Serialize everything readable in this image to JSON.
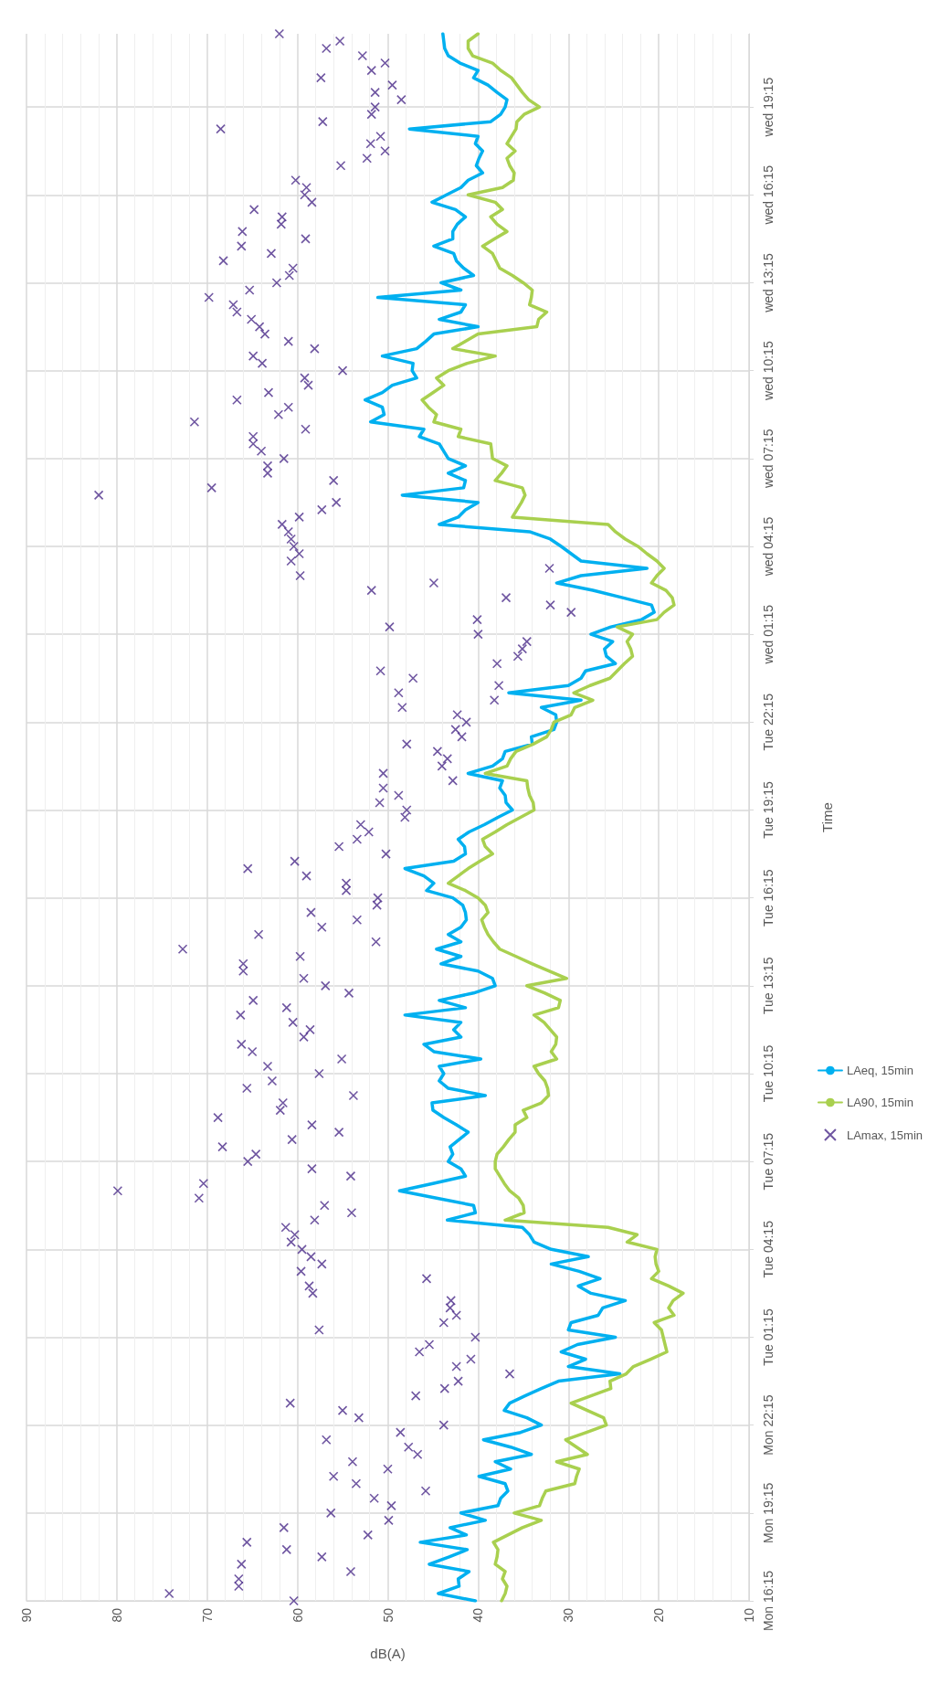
{
  "chart_data": {
    "type": "line",
    "orientation": "horizontal",
    "xlabel": "dB(A)",
    "ylabel": "Time",
    "grid": true,
    "legend": "right",
    "xlim": [
      90,
      10
    ],
    "xticks": [
      90,
      80,
      70,
      60,
      50,
      40,
      30,
      20,
      10
    ],
    "categories": [
      null,
      null,
      null,
      null,
      null,
      null,
      null,
      null,
      null,
      null,
      "wed 19:15",
      null,
      null,
      null,
      null,
      null,
      null,
      null,
      null,
      null,
      null,
      null,
      "wed 16:15",
      null,
      null,
      null,
      null,
      null,
      null,
      null,
      null,
      null,
      null,
      null,
      "wed 13:15",
      null,
      null,
      null,
      null,
      null,
      null,
      null,
      null,
      null,
      null,
      null,
      "wed 10:15",
      null,
      null,
      null,
      null,
      null,
      null,
      null,
      null,
      null,
      null,
      null,
      "wed 07:15",
      null,
      null,
      null,
      null,
      null,
      null,
      null,
      null,
      null,
      null,
      null,
      "wed 04:15",
      null,
      null,
      null,
      null,
      null,
      null,
      null,
      null,
      null,
      null,
      null,
      "wed 01:15",
      null,
      null,
      null,
      null,
      null,
      null,
      null,
      null,
      null,
      null,
      null,
      "Tue 22:15",
      null,
      null,
      null,
      null,
      null,
      null,
      null,
      null,
      null,
      null,
      null,
      "Tue 19:15",
      null,
      null,
      null,
      null,
      null,
      null,
      null,
      null,
      null,
      null,
      null,
      "Tue 16:15",
      null,
      null,
      null,
      null,
      null,
      null,
      null,
      null,
      null,
      null,
      null,
      "Tue 13:15",
      null,
      null,
      null,
      null,
      null,
      null,
      null,
      null,
      null,
      null,
      null,
      "Tue 10:15",
      null,
      null,
      null,
      null,
      null,
      null,
      null,
      null,
      null,
      null,
      null,
      "Tue 07:15",
      null,
      null,
      null,
      null,
      null,
      null,
      null,
      null,
      null,
      null,
      null,
      "Tue 04:15",
      null,
      null,
      null,
      null,
      null,
      null,
      null,
      null,
      null,
      null,
      null,
      "Tue 01:15",
      null,
      null,
      null,
      null,
      null,
      null,
      null,
      null,
      null,
      null,
      null,
      "Mon 22:15",
      null,
      null,
      null,
      null,
      null,
      null,
      null,
      null,
      null,
      null,
      null,
      "Mon 19:15",
      null,
      null,
      null,
      null,
      null,
      null,
      null,
      null,
      null,
      null,
      null,
      "Mon 16:15"
    ],
    "series": [
      {
        "name": "LAeq, 15min",
        "marker": "none",
        "color": "#00b0f0",
        "values": [
          43.9,
          43.8,
          43.7,
          43.3,
          42.0,
          40.0,
          40.5,
          38.9,
          37.9,
          36.8,
          37.0,
          37.5,
          38.6,
          47.6,
          40.0,
          40.3,
          39.5,
          39.9,
          40.2,
          39.5,
          41.1,
          41.9,
          43.5,
          45.1,
          42.5,
          41.4,
          42.3,
          42.8,
          42.8,
          44.9,
          42.7,
          42.4,
          41.6,
          40.5,
          44.1,
          41.9,
          51.1,
          41.4,
          41.9,
          44.3,
          40.0,
          44.9,
          45.8,
          46.8,
          50.6,
          47.2,
          47.3,
          46.8,
          49.5,
          50.6,
          52.5,
          50.6,
          50.4,
          51.9,
          46.0,
          46.5,
          44.3,
          43.8,
          43.3,
          41.4,
          43.3,
          41.4,
          41.6,
          48.4,
          40.0,
          41.4,
          42.2,
          44.3,
          34.3,
          32.0,
          30.8,
          29.7,
          28.6,
          21.3,
          28.6,
          31.3,
          27.3,
          24.0,
          20.8,
          20.5,
          21.9,
          25.3,
          27.5,
          25.1,
          26.0,
          25.8,
          24.8,
          28.1,
          28.6,
          30.0,
          36.6,
          28.6,
          33.0,
          31.4,
          31.3,
          31.6,
          34.1,
          34.0,
          37.0,
          37.3,
          38.4,
          41.1,
          37.3,
          37.6,
          37.0,
          36.9,
          36.2,
          37.8,
          39.3,
          41.0,
          42.2,
          41.5,
          41.4,
          42.7,
          48.1,
          46.0,
          44.9,
          45.7,
          42.8,
          41.7,
          41.4,
          41.3,
          41.9,
          43.3,
          41.9,
          44.6,
          41.9,
          44.1,
          40.0,
          38.4,
          38.1,
          40.5,
          44.3,
          41.4,
          48.1,
          41.9,
          42.7,
          41.9,
          46.0,
          44.9,
          39.7,
          44.3,
          43.8,
          44.3,
          43.3,
          39.2,
          45.1,
          45.0,
          43.8,
          42.4,
          41.1,
          42.1,
          43.1,
          42.8,
          43.3,
          41.9,
          41.4,
          45.0,
          48.7,
          44.6,
          40.5,
          40.3,
          43.4,
          35.1,
          34.3,
          33.8,
          31.9,
          27.8,
          31.9,
          28.8,
          26.5,
          28.9,
          27.5,
          23.7,
          26.2,
          26.7,
          29.7,
          30.0,
          24.8,
          29.0,
          30.8,
          28.1,
          30.0,
          24.3,
          31.1,
          33.0,
          34.8,
          36.5,
          37.1,
          34.6,
          33.0,
          35.3,
          39.4,
          36.4,
          34.1,
          38.1,
          36.4,
          39.9,
          37.0,
          36.7,
          37.5,
          37.8,
          41.9,
          39.2,
          43.1,
          41.3,
          46.4,
          41.2,
          43.2,
          45.4,
          41.0,
          42.2,
          42.1,
          44.4,
          40.3
        ]
      },
      {
        "name": "LA90, 15min",
        "marker": "none",
        "color": "#a9d04f",
        "values": [
          40.0,
          41.1,
          41.1,
          40.6,
          38.4,
          37.5,
          36.3,
          35.7,
          35.1,
          34.4,
          33.2,
          34.9,
          35.7,
          35.8,
          36.3,
          36.8,
          35.9,
          36.8,
          36.5,
          36.0,
          36.1,
          37.3,
          41.1,
          38.1,
          37.3,
          38.6,
          37.9,
          36.8,
          38.2,
          39.5,
          38.4,
          38.0,
          37.6,
          36.2,
          35.0,
          34.0,
          34.1,
          34.3,
          32.4,
          33.3,
          33.5,
          40.0,
          41.4,
          42.8,
          38.1,
          41.2,
          43.3,
          44.6,
          43.8,
          45.0,
          46.2,
          45.5,
          44.6,
          44.9,
          41.9,
          42.2,
          38.6,
          38.5,
          38.4,
          36.8,
          37.4,
          38.1,
          35.1,
          34.8,
          35.2,
          35.7,
          36.2,
          25.6,
          24.8,
          23.7,
          22.3,
          21.3,
          20.2,
          19.4,
          20.2,
          20.8,
          19.2,
          18.5,
          18.3,
          19.4,
          20.2,
          24.6,
          22.9,
          23.5,
          23.1,
          22.9,
          23.8,
          24.6,
          25.4,
          27.6,
          29.4,
          27.3,
          29.3,
          29.7,
          31.6,
          31.9,
          32.4,
          33.9,
          35.8,
          36.4,
          36.8,
          39.2,
          34.6,
          34.5,
          34.3,
          33.9,
          33.8,
          35.3,
          36.8,
          38.1,
          39.5,
          39.2,
          38.4,
          39.8,
          41.1,
          42.2,
          43.3,
          41.4,
          40.0,
          39.2,
          38.9,
          39.6,
          39.3,
          38.9,
          38.3,
          37.6,
          35.8,
          34.0,
          32.1,
          30.2,
          34.6,
          32.6,
          30.9,
          31.1,
          33.8,
          32.7,
          32.0,
          31.3,
          31.4,
          31.9,
          31.3,
          33.8,
          33.3,
          32.6,
          32.3,
          32.2,
          33.0,
          35.0,
          34.6,
          35.9,
          35.9,
          36.6,
          37.2,
          37.9,
          38.1,
          38.1,
          37.6,
          37.1,
          36.5,
          35.5,
          35.0,
          34.9,
          37.0,
          25.6,
          22.4,
          23.5,
          20.2,
          20.4,
          20.3,
          20.0,
          20.8,
          18.9,
          17.3,
          18.4,
          18.9,
          18.3,
          20.5,
          19.7,
          19.5,
          19.3,
          19.1,
          20.9,
          22.8,
          23.6,
          25.4,
          25.3,
          27.5,
          29.7,
          27.9,
          26.1,
          25.8,
          28.0,
          30.3,
          29.1,
          27.9,
          31.3,
          28.8,
          29.1,
          29.3,
          32.5,
          32.9,
          33.2,
          36.0,
          33.0,
          35.1,
          36.7,
          38.3,
          37.8,
          37.9,
          38.1,
          37.0,
          37.3,
          36.8,
          37.0,
          37.4
        ]
      },
      {
        "name": "LAmax, 15min",
        "type": "scatter",
        "marker": "cross",
        "color": "#4b2c8a",
        "values": [
          62.0,
          55.3,
          56.8,
          52.8,
          50.3,
          51.8,
          57.4,
          49.5,
          51.4,
          48.5,
          51.4,
          51.8,
          57.2,
          68.5,
          50.8,
          51.9,
          50.3,
          52.3,
          55.2,
          null,
          60.2,
          59.0,
          59.2,
          58.4,
          64.8,
          61.7,
          61.8,
          66.1,
          59.1,
          66.2,
          62.9,
          68.2,
          60.5,
          60.9,
          62.3,
          65.3,
          69.8,
          67.1,
          66.7,
          65.1,
          64.2,
          63.6,
          61.0,
          58.1,
          64.9,
          63.9,
          55.0,
          59.2,
          58.8,
          63.2,
          66.7,
          61.0,
          62.1,
          71.4,
          59.1,
          64.9,
          64.9,
          64.0,
          61.5,
          63.3,
          63.3,
          56.0,
          69.5,
          82.0,
          55.7,
          57.3,
          59.8,
          61.7,
          61.0,
          60.7,
          60.4,
          59.8,
          60.7,
          32.1,
          59.7,
          44.9,
          51.8,
          36.9,
          32.0,
          29.7,
          40.1,
          49.8,
          40.0,
          34.6,
          35.1,
          35.6,
          37.9,
          50.8,
          47.2,
          37.7,
          48.8,
          38.2,
          48.4,
          42.3,
          41.3,
          42.5,
          41.8,
          47.9,
          44.5,
          43.4,
          44.0,
          50.5,
          42.8,
          50.5,
          48.8,
          50.9,
          47.9,
          48.1,
          53.0,
          52.1,
          53.4,
          55.4,
          50.2,
          60.3,
          65.5,
          59.0,
          54.6,
          54.6,
          51.1,
          51.2,
          58.5,
          53.4,
          57.3,
          64.3,
          51.3,
          72.7,
          59.7,
          66.0,
          66.0,
          59.3,
          56.9,
          54.3,
          64.9,
          61.2,
          66.3,
          60.5,
          58.6,
          59.3,
          66.2,
          65.0,
          55.1,
          63.3,
          57.6,
          62.8,
          65.6,
          53.8,
          61.6,
          61.9,
          68.8,
          58.4,
          55.4,
          60.6,
          68.3,
          64.6,
          65.5,
          58.4,
          54.1,
          70.4,
          79.9,
          70.9,
          57.0,
          54.0,
          58.1,
          61.3,
          60.3,
          60.7,
          59.5,
          58.5,
          57.3,
          59.6,
          45.7,
          58.7,
          58.3,
          43.0,
          43.1,
          42.4,
          43.8,
          57.6,
          40.3,
          45.4,
          46.5,
          40.8,
          42.4,
          36.5,
          42.2,
          43.7,
          46.9,
          60.8,
          55.0,
          53.2,
          43.8,
          48.6,
          56.8,
          47.7,
          46.7,
          53.9,
          50.0,
          56.0,
          53.5,
          45.8,
          51.5,
          49.6,
          56.3,
          49.9,
          61.5,
          52.2,
          65.6,
          61.2,
          57.3,
          66.2,
          54.1,
          66.5,
          66.5,
          74.2,
          60.4
        ]
      }
    ]
  }
}
